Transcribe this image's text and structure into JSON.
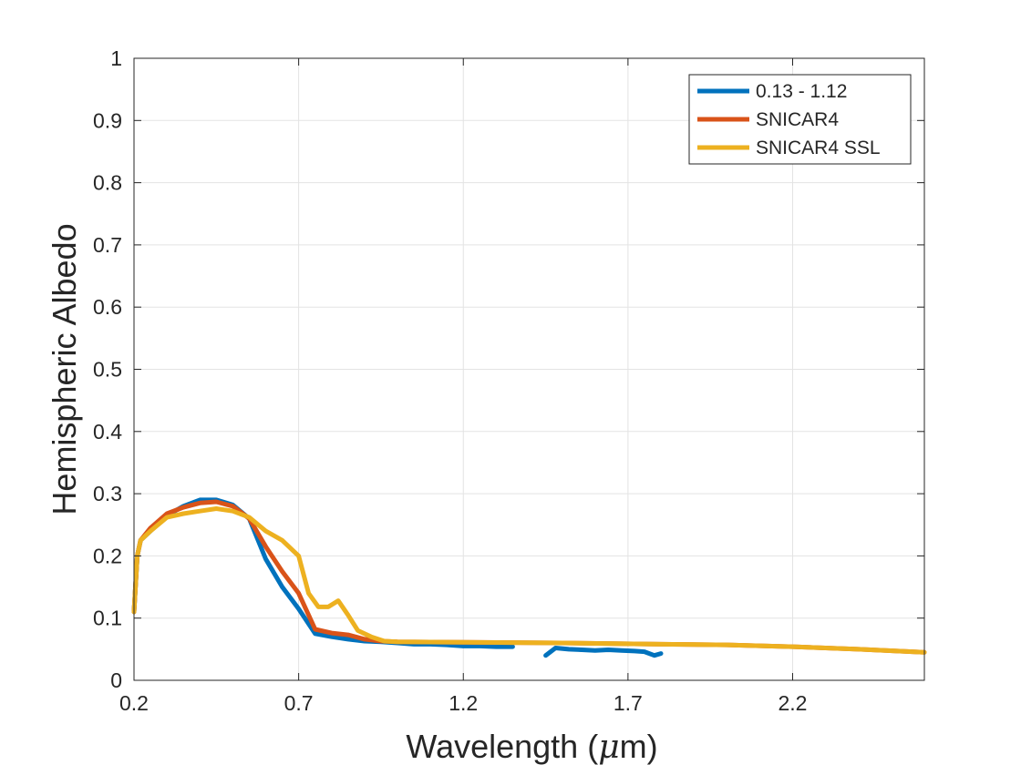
{
  "chart_data": {
    "type": "line",
    "title": "",
    "xlabel": "Wavelength (",
    "xlabel_mu": "μ",
    "xlabel_end": "m)",
    "ylabel": "Hemispheric Albedo",
    "xlim": [
      0.2,
      2.6
    ],
    "ylim": [
      0,
      1
    ],
    "xticks": [
      0.2,
      0.7,
      1.2,
      1.7,
      2.2
    ],
    "xtick_labels": [
      "0.2",
      "0.7",
      "1.2",
      "1.7",
      "2.2"
    ],
    "yticks": [
      0,
      0.1,
      0.2,
      0.3,
      0.4,
      0.5,
      0.6,
      0.7,
      0.8,
      0.9,
      1
    ],
    "ytick_labels": [
      "0",
      "0.1",
      "0.2",
      "0.3",
      "0.4",
      "0.5",
      "0.6",
      "0.7",
      "0.8",
      "0.9",
      "1"
    ],
    "grid": true,
    "legend_position": "top-right",
    "series": [
      {
        "name": "0.13 - 1.12",
        "color": "#0072BD",
        "segments": [
          [
            [
              0.2,
              0.11
            ],
            [
              0.21,
              0.2
            ],
            [
              0.22,
              0.225
            ],
            [
              0.25,
              0.24
            ],
            [
              0.3,
              0.265
            ],
            [
              0.35,
              0.28
            ],
            [
              0.4,
              0.29
            ],
            [
              0.45,
              0.29
            ],
            [
              0.5,
              0.282
            ],
            [
              0.55,
              0.26
            ],
            [
              0.6,
              0.195
            ],
            [
              0.65,
              0.15
            ],
            [
              0.7,
              0.115
            ],
            [
              0.75,
              0.075
            ],
            [
              0.8,
              0.07
            ],
            [
              0.85,
              0.066
            ],
            [
              0.9,
              0.063
            ],
            [
              0.95,
              0.062
            ],
            [
              1.0,
              0.06
            ],
            [
              1.05,
              0.058
            ],
            [
              1.1,
              0.058
            ],
            [
              1.15,
              0.057
            ],
            [
              1.2,
              0.055
            ],
            [
              1.25,
              0.055
            ],
            [
              1.3,
              0.054
            ],
            [
              1.35,
              0.054
            ]
          ],
          [
            [
              1.45,
              0.04
            ],
            [
              1.48,
              0.052
            ],
            [
              1.52,
              0.05
            ],
            [
              1.56,
              0.049
            ],
            [
              1.6,
              0.048
            ],
            [
              1.64,
              0.049
            ],
            [
              1.68,
              0.048
            ],
            [
              1.72,
              0.047
            ],
            [
              1.75,
              0.046
            ],
            [
              1.78,
              0.04
            ],
            [
              1.8,
              0.043
            ]
          ]
        ]
      },
      {
        "name": "SNICAR4",
        "color": "#D95319",
        "segments": [
          [
            [
              0.2,
              0.11
            ],
            [
              0.21,
              0.2
            ],
            [
              0.22,
              0.225
            ],
            [
              0.25,
              0.245
            ],
            [
              0.3,
              0.268
            ],
            [
              0.35,
              0.278
            ],
            [
              0.4,
              0.285
            ],
            [
              0.45,
              0.287
            ],
            [
              0.5,
              0.28
            ],
            [
              0.55,
              0.26
            ],
            [
              0.6,
              0.215
            ],
            [
              0.65,
              0.175
            ],
            [
              0.7,
              0.14
            ],
            [
              0.75,
              0.082
            ],
            [
              0.8,
              0.076
            ],
            [
              0.85,
              0.073
            ],
            [
              0.9,
              0.066
            ],
            [
              0.95,
              0.063
            ],
            [
              1.0,
              0.062
            ],
            [
              1.2,
              0.061
            ],
            [
              1.5,
              0.06
            ],
            [
              1.8,
              0.058
            ],
            [
              2.0,
              0.057
            ],
            [
              2.2,
              0.054
            ],
            [
              2.4,
              0.05
            ],
            [
              2.6,
              0.045
            ]
          ]
        ]
      },
      {
        "name": "SNICAR4 SSL",
        "color": "#EDB120",
        "segments": [
          [
            [
              0.2,
              0.11
            ],
            [
              0.21,
              0.2
            ],
            [
              0.22,
              0.225
            ],
            [
              0.25,
              0.24
            ],
            [
              0.3,
              0.262
            ],
            [
              0.35,
              0.268
            ],
            [
              0.4,
              0.272
            ],
            [
              0.45,
              0.276
            ],
            [
              0.5,
              0.272
            ],
            [
              0.55,
              0.262
            ],
            [
              0.6,
              0.24
            ],
            [
              0.65,
              0.225
            ],
            [
              0.7,
              0.2
            ],
            [
              0.73,
              0.14
            ],
            [
              0.76,
              0.118
            ],
            [
              0.79,
              0.118
            ],
            [
              0.82,
              0.128
            ],
            [
              0.85,
              0.105
            ],
            [
              0.88,
              0.08
            ],
            [
              0.92,
              0.07
            ],
            [
              0.96,
              0.063
            ],
            [
              1.0,
              0.062
            ],
            [
              1.2,
              0.061
            ],
            [
              1.5,
              0.06
            ],
            [
              1.8,
              0.058
            ],
            [
              2.0,
              0.057
            ],
            [
              2.2,
              0.054
            ],
            [
              2.4,
              0.05
            ],
            [
              2.6,
              0.045
            ]
          ]
        ]
      }
    ]
  }
}
